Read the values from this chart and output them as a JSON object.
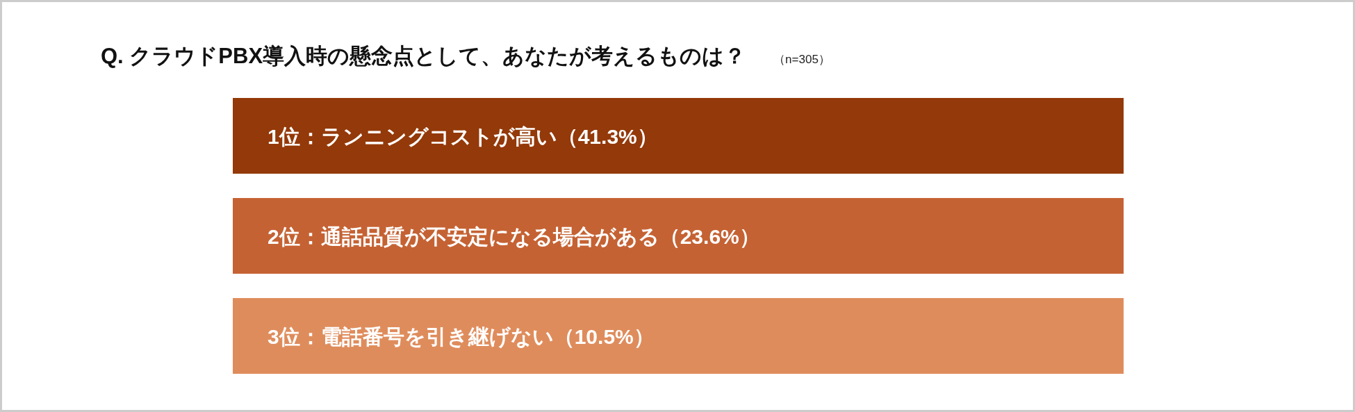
{
  "chart_data": {
    "type": "other",
    "title": "Q. クラウドPBX導入時の懸念点として、あなたが考えるものは？",
    "subtitle": "（n=305）",
    "categories": [
      "1位：ランニングコストが高い",
      "2位：通話品質が不安定になる場合がある",
      "3位：電話番号を引き継げない"
    ],
    "values": [
      41.3,
      23.6,
      10.5
    ],
    "value_labels": [
      "（41.3%）",
      "（23.6%）",
      "（10.5%）"
    ],
    "colors": [
      "#943909",
      "#c56233",
      "#df8c5c"
    ]
  }
}
